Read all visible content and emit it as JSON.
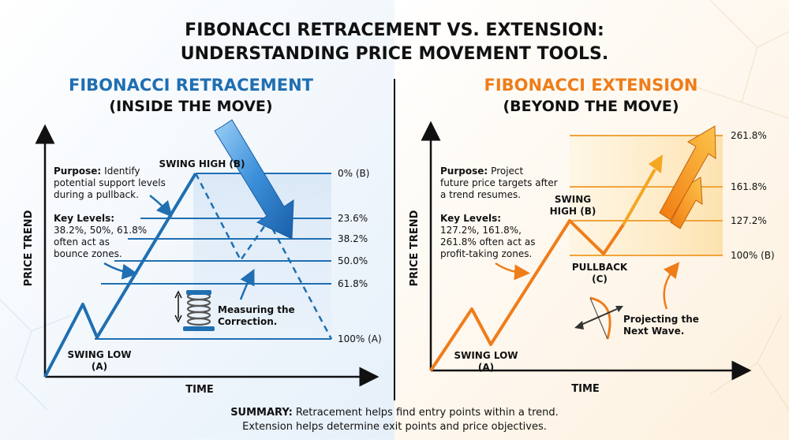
{
  "title": {
    "line1": "FIBONACCI RETRACEMENT VS. EXTENSION:",
    "line2": "UNDERSTANDING PRICE MOVEMENT TOOLS."
  },
  "colors": {
    "retracement": "#1f6fb2",
    "extension": "#ee7d1a",
    "text": "#111111",
    "divider": "#111111"
  },
  "retracement": {
    "heading": "FIBONACCI RETRACEMENT",
    "subheading": "(INSIDE THE MOVE)",
    "swing_high": "SWING HIGH (B)",
    "swing_low_1": "SWING LOW",
    "swing_low_2": "(A)",
    "purpose_label": "Purpose:",
    "purpose_l1": "Identify",
    "purpose_l2": "potential support levels",
    "purpose_l3": "during a pullback.",
    "key_label": "Key Levels:",
    "key_l1": "38.2%, 50%, 61.8%",
    "key_l2": "often act as",
    "key_l3": "bounce zones.",
    "measure_l1": "Measuring the",
    "measure_l2": "Correction.",
    "levels": [
      "0% (B)",
      "23.6%",
      "38.2%",
      "50.0%",
      "61.8%",
      "100% (A)"
    ],
    "y_axis": "PRICE TREND",
    "x_axis": "TIME",
    "icons": [
      "spring-icon",
      "double-arrow-icon",
      "big-arrow-icon"
    ]
  },
  "extension": {
    "heading": "FIBONACCI EXTENSION",
    "subheading": "(BEYOND THE MOVE)",
    "swing_high_1": "SWING",
    "swing_high_2": "HIGH (B)",
    "swing_low_1": "SWING LOW",
    "swing_low_2": "(A)",
    "pullback_1": "PULLBACK",
    "pullback_2": "(C)",
    "purpose_label": "Purpose:",
    "purpose_l1": "Project",
    "purpose_l2": "future price targets after",
    "purpose_l3": "a trend resumes.",
    "key_label": "Key Levels:",
    "key_l1": "127.2%, 161.8%,",
    "key_l2": "261.8% often act as",
    "key_l3": "profit-taking zones.",
    "project_l1": "Projecting the",
    "project_l2": "Next Wave.",
    "levels": [
      "261.8%",
      "161.8%",
      "127.2%",
      "100% (B)"
    ],
    "y_axis": "PRICE TREND",
    "x_axis": "TIME",
    "icons": [
      "bow-arrow-icon",
      "up-arrow-icon"
    ]
  },
  "summary": {
    "label": "SUMMARY:",
    "line1": "Retracement helps find entry points within a trend.",
    "line2": "Extension helps determine exit points and price objectives."
  }
}
